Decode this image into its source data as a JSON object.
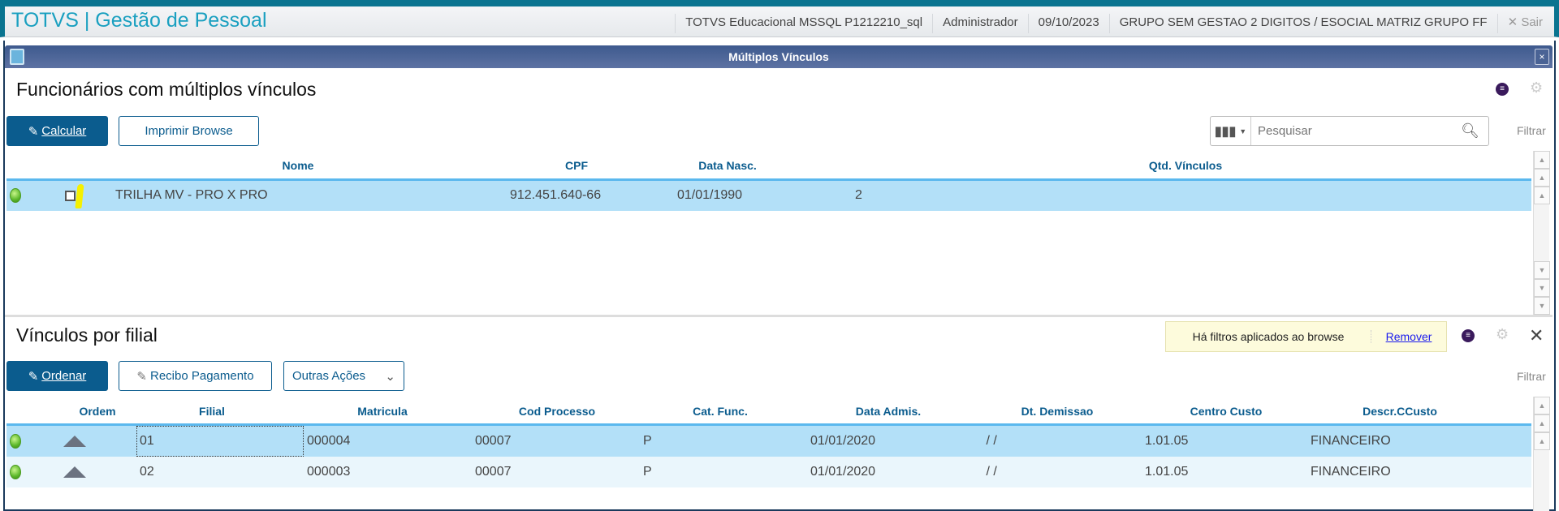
{
  "header": {
    "title": "TOTVS | Gestão de Pessoal",
    "environment": "TOTVS Educacional MSSQL P1212210_sql",
    "user": "Administrador",
    "date": "09/10/2023",
    "company": "GRUPO SEM GESTAO 2 DIGITOS / ESOCIAL MATRIZ GRUPO FF",
    "exit_label": "Sair"
  },
  "window": {
    "title": "Múltiplos Vínculos",
    "close_label": "×"
  },
  "top": {
    "title": "Funcionários com múltiplos vínculos",
    "buttons": {
      "calcular": "Calcular",
      "imprimir": "Imprimir Browse"
    },
    "search": {
      "placeholder": "Pesquisar",
      "filter_label": "Filtrar"
    },
    "columns": [
      "Nome",
      "CPF",
      "Data Nasc.",
      "Qtd. Vínculos"
    ],
    "rows": [
      {
        "status": "green",
        "checked": false,
        "nome": "TRILHA MV - PRO X PRO",
        "cpf": "912.451.640-66",
        "data_nasc": "01/01/1990",
        "qtd": "2",
        "selected": true
      }
    ]
  },
  "bottom": {
    "title": "Vínculos por filial",
    "filter_notice": "Há filtros aplicados ao browse",
    "remove_label": "Remover",
    "buttons": {
      "ordenar": "Ordenar",
      "recibo": "Recibo Pagamento",
      "outras": "Outras Ações"
    },
    "filter_label": "Filtrar",
    "columns": [
      "Ordem",
      "Filial",
      "Matricula",
      "Cod Processo",
      "Cat. Func.",
      "Data Admis.",
      "Dt. Demissao",
      "Centro Custo",
      "Descr.CCusto"
    ],
    "rows": [
      {
        "status": "green",
        "filial": "01",
        "matricula": "000004",
        "cod_processo": "00007",
        "cat_func": "P",
        "data_admis": "01/01/2020",
        "dt_demissao": " / /",
        "centro_custo": "1.01.05",
        "descr": "FINANCEIRO",
        "selected": true
      },
      {
        "status": "green",
        "filial": "02",
        "matricula": "000003",
        "cod_processo": "00007",
        "cat_func": "P",
        "data_admis": "01/01/2020",
        "dt_demissao": " / /",
        "centro_custo": "1.01.05",
        "descr": "FINANCEIRO",
        "selected": false
      }
    ]
  },
  "colors": {
    "brand": "#1aa0c0",
    "primary": "#0b5c8e",
    "selected_row": "#b3e0f8",
    "alt_row": "#eaf6fc",
    "notice": "#fdfbdc"
  }
}
